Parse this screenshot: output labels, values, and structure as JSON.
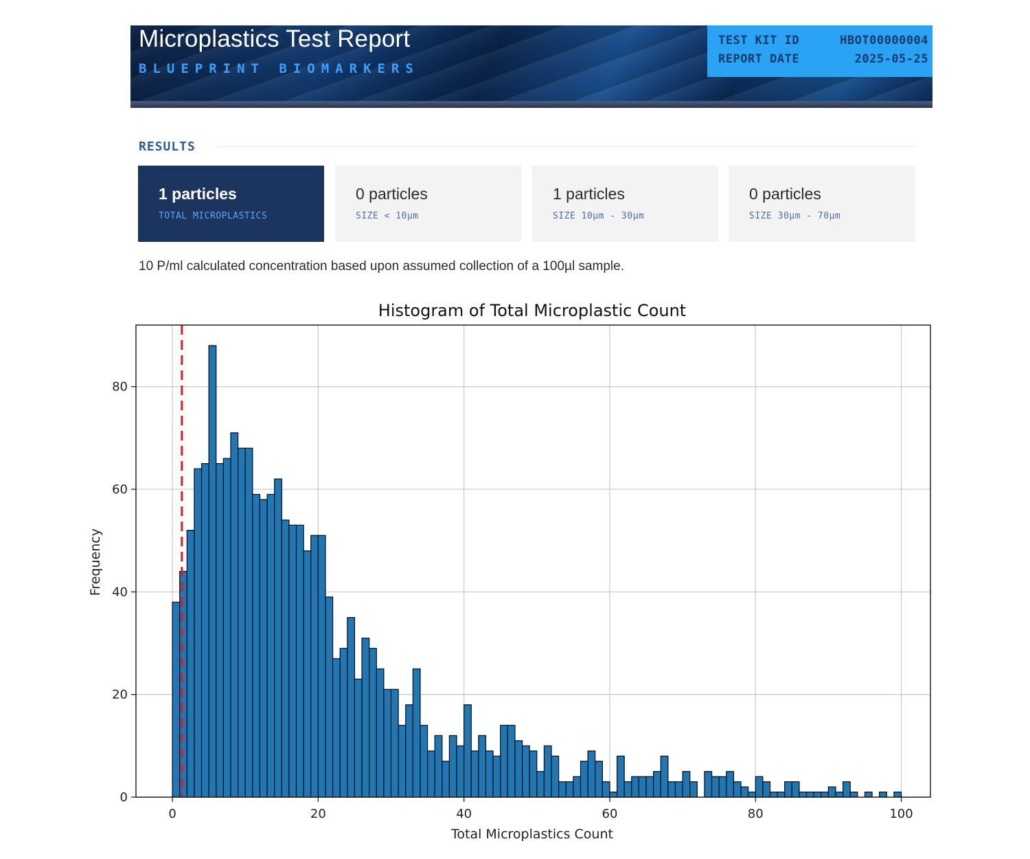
{
  "header": {
    "title": "Microplastics Test Report",
    "subtitle": "BLUEPRINT BIOMARKERS",
    "kit_id_label": "TEST KIT ID",
    "kit_id_value": "HBOT00000004",
    "report_date_label": "REPORT DATE",
    "report_date_value": "2025-05-25"
  },
  "results": {
    "label": "RESULTS",
    "cards": [
      {
        "count": "1 particles",
        "desc": "TOTAL MICROPLASTICS"
      },
      {
        "count": "0 particles",
        "desc": "SIZE < 10µm"
      },
      {
        "count": "1 particles",
        "desc": "SIZE 10µm - 30µm"
      },
      {
        "count": "0 particles",
        "desc": "SIZE 30µm - 70µm"
      }
    ],
    "note": "10 P/ml calculated concentration based upon assumed collection of a 100µl sample."
  },
  "colors": {
    "bar_fill": "#1f77b4",
    "bar_edge": "#0a0a0a",
    "marker_line": "#e31a1c",
    "grid": "#c8c8c8"
  },
  "chart_data": {
    "type": "histogram",
    "title": "Histogram of Total Microplastic Count",
    "xlabel": "Total Microplastics Count",
    "ylabel": "Frequency",
    "xlim": [
      -5,
      104
    ],
    "ylim": [
      0,
      92
    ],
    "xticks": [
      0,
      20,
      40,
      60,
      80,
      100
    ],
    "yticks": [
      0,
      20,
      40,
      60,
      80
    ],
    "grid": true,
    "bin_start": 0,
    "bin_width": 1,
    "counts": [
      38,
      44,
      52,
      64,
      65,
      88,
      65,
      66,
      71,
      68,
      68,
      59,
      58,
      59,
      62,
      54,
      53,
      53,
      48,
      51,
      51,
      39,
      27,
      29,
      35,
      23,
      31,
      29,
      25,
      21,
      21,
      14,
      18,
      25,
      14,
      9,
      12,
      7,
      12,
      10,
      18,
      9,
      12,
      9,
      8,
      14,
      14,
      11,
      10,
      9,
      5,
      10,
      8,
      3,
      3,
      4,
      7,
      9,
      7,
      3,
      1,
      8,
      3,
      4,
      4,
      4,
      5,
      8,
      3,
      3,
      5,
      3,
      0,
      5,
      4,
      4,
      5,
      3,
      2,
      1,
      4,
      3,
      1,
      1,
      3,
      3,
      1,
      1,
      1,
      1,
      2,
      1,
      3,
      1,
      0,
      1,
      0,
      1,
      0,
      1
    ],
    "reference_line": {
      "x": 1.3,
      "style": "dashed"
    }
  }
}
